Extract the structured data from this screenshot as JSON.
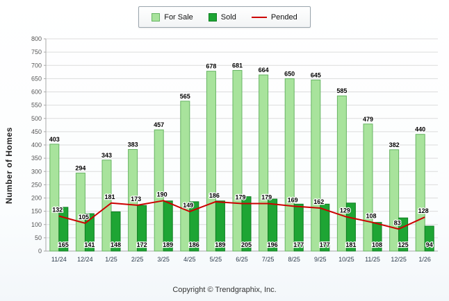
{
  "legend": {
    "for_sale_label": "For Sale",
    "sold_label": "Sold",
    "pended_label": "Pended"
  },
  "footer_text": "Copyright © Trendgraphix, Inc.",
  "colors": {
    "for_sale": "#A8E39C",
    "for_sale_border": "#67B463",
    "sold": "#1EA534",
    "sold_border": "#0D7E20",
    "pended": "#CC0000",
    "grid": "#DCDCDC",
    "axis": "#A9A9A9",
    "tick_text": "#555555",
    "category_text": "#2B3A4A"
  },
  "chart_data": {
    "type": "bar",
    "title": "",
    "xlabel": "",
    "ylabel": "Number of Homes",
    "ylim": [
      0,
      800
    ],
    "ytick_step": 50,
    "grid": true,
    "legend_position": "top",
    "categories": [
      "11/24",
      "12/24",
      "1/25",
      "2/25",
      "3/25",
      "4/25",
      "5/25",
      "6/25",
      "7/25",
      "8/25",
      "9/25",
      "10/25",
      "11/25",
      "12/25",
      "1/26"
    ],
    "series": [
      {
        "name": "For Sale",
        "type": "bar",
        "values": [
          403,
          294,
          343,
          383,
          457,
          565,
          678,
          681,
          664,
          650,
          645,
          585,
          479,
          382,
          440
        ]
      },
      {
        "name": "Sold",
        "type": "bar",
        "values": [
          165,
          141,
          148,
          172,
          189,
          186,
          189,
          205,
          196,
          177,
          177,
          181,
          108,
          125,
          94
        ]
      },
      {
        "name": "Pended",
        "type": "line",
        "values": [
          132,
          105,
          181,
          173,
          190,
          149,
          186,
          179,
          179,
          169,
          162,
          129,
          108,
          83,
          128
        ]
      }
    ]
  }
}
